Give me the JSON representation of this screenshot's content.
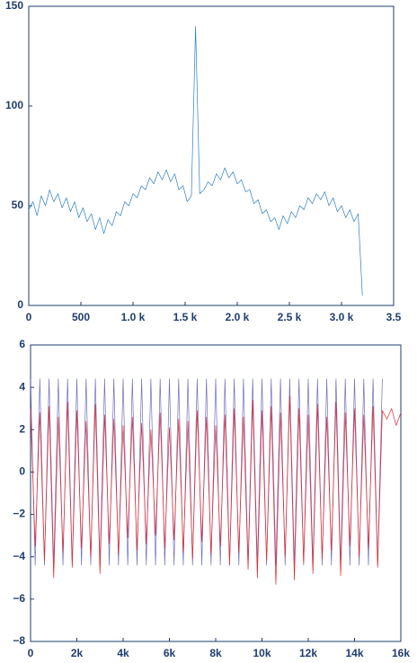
{
  "chart_data": [
    {
      "type": "line",
      "xlim": [
        0,
        3500
      ],
      "ylim": [
        0,
        150
      ],
      "xticks": [
        0,
        500,
        {
          "value": 1000,
          "label": "1.0 k"
        },
        {
          "value": 1500,
          "label": "1.5 k"
        },
        {
          "value": 2000,
          "label": "2.0 k"
        },
        {
          "value": 2500,
          "label": "2.5 k"
        },
        {
          "value": 3000,
          "label": "3.0 k"
        },
        {
          "value": 3500,
          "label": "3.5"
        }
      ],
      "yticks": [
        0,
        50,
        100,
        150
      ],
      "x": [
        0,
        40,
        80,
        120,
        160,
        200,
        240,
        280,
        320,
        360,
        400,
        440,
        480,
        520,
        560,
        600,
        640,
        680,
        720,
        760,
        800,
        840,
        880,
        920,
        960,
        1000,
        1040,
        1080,
        1120,
        1160,
        1200,
        1240,
        1280,
        1320,
        1360,
        1400,
        1440,
        1480,
        1520,
        1560,
        1600,
        1640,
        1680,
        1720,
        1760,
        1800,
        1840,
        1880,
        1920,
        1960,
        2000,
        2040,
        2080,
        2120,
        2160,
        2200,
        2240,
        2280,
        2320,
        2360,
        2400,
        2440,
        2480,
        2520,
        2560,
        2600,
        2640,
        2680,
        2720,
        2760,
        2800,
        2840,
        2880,
        2920,
        2960,
        3000,
        3040,
        3080,
        3120,
        3160,
        3200
      ],
      "series": [
        {
          "color": "#2f7fc1",
          "values": [
            48,
            52,
            45,
            55,
            50,
            58,
            52,
            56,
            49,
            54,
            47,
            52,
            44,
            49,
            42,
            46,
            38,
            44,
            36,
            43,
            40,
            47,
            45,
            52,
            50,
            56,
            54,
            60,
            58,
            64,
            61,
            67,
            63,
            68,
            62,
            66,
            58,
            60,
            52,
            55,
            140,
            56,
            58,
            62,
            60,
            66,
            63,
            69,
            64,
            67,
            61,
            63,
            57,
            58,
            51,
            53,
            46,
            48,
            42,
            44,
            38,
            45,
            41,
            47,
            44,
            50,
            48,
            54,
            51,
            56,
            53,
            57,
            50,
            54,
            47,
            50,
            44,
            48,
            42,
            46,
            5
          ]
        }
      ]
    },
    {
      "type": "line",
      "xlim": [
        0,
        16000
      ],
      "ylim": [
        -8,
        6
      ],
      "xticks": [
        0,
        {
          "value": 2000,
          "label": "2k"
        },
        {
          "value": 4000,
          "label": "4k"
        },
        {
          "value": 6000,
          "label": "6k"
        },
        {
          "value": 8000,
          "label": "8k"
        },
        {
          "value": 10000,
          "label": "10k"
        },
        {
          "value": 12000,
          "label": "12k"
        },
        {
          "value": 14000,
          "label": "14k"
        },
        {
          "value": 16000,
          "label": "16k"
        }
      ],
      "yticks": [
        {
          "value": -8,
          "label": "−8"
        },
        {
          "value": -6,
          "label": "−6"
        },
        {
          "value": -4,
          "label": "−4"
        },
        {
          "value": -2,
          "label": "−2"
        },
        0,
        2,
        4,
        6
      ],
      "x": [
        0,
        200,
        400,
        600,
        800,
        1000,
        1200,
        1400,
        1600,
        1800,
        2000,
        2200,
        2400,
        2600,
        2800,
        3000,
        3200,
        3400,
        3600,
        3800,
        4000,
        4200,
        4400,
        4600,
        4800,
        5000,
        5200,
        5400,
        5600,
        5800,
        6000,
        6200,
        6400,
        6600,
        6800,
        7000,
        7200,
        7400,
        7600,
        7800,
        8000,
        8200,
        8400,
        8600,
        8800,
        9000,
        9200,
        9400,
        9600,
        9800,
        10000,
        10200,
        10400,
        10600,
        10800,
        11000,
        11200,
        11400,
        11600,
        11800,
        12000,
        12200,
        12400,
        12600,
        12800,
        13000,
        13200,
        13400,
        13600,
        13800,
        14000,
        14200,
        14400,
        14600,
        14800,
        15000,
        15200,
        15400,
        15600,
        15800,
        16000
      ],
      "series": [
        {
          "color": "#4b4bb0",
          "values": [
            4.4,
            -4.4,
            4.4,
            -4.4,
            4.4,
            -4.4,
            4.4,
            -4.4,
            4.4,
            -4.4,
            4.4,
            -4.4,
            4.4,
            -4.4,
            4.4,
            -4.4,
            4.4,
            -4.4,
            4.4,
            -4.4,
            4.4,
            -4.4,
            4.4,
            -4.4,
            4.4,
            -4.4,
            4.4,
            -4.4,
            4.4,
            -4.4,
            4.4,
            -4.4,
            4.4,
            -4.4,
            4.4,
            -4.4,
            4.4,
            -4.4,
            4.4,
            -4.4,
            4.4,
            -4.4,
            4.4,
            -4.4,
            4.4,
            -4.4,
            4.4,
            -4.4,
            4.4,
            -4.4,
            4.4,
            -4.4,
            4.4,
            -4.4,
            4.4,
            -4.4,
            4.4,
            -4.4,
            4.4,
            -4.4,
            4.4,
            -4.4,
            4.4,
            -4.4,
            4.4,
            -4.4,
            4.4,
            -4.4,
            4.4,
            -4.4,
            4.4,
            -4.4,
            4.4,
            -4.4,
            4.4,
            -4.4,
            4.4,
            null,
            null,
            null,
            null
          ]
        },
        {
          "color": "#e52a2a",
          "values": [
            3.0,
            -3.5,
            2.8,
            -4.2,
            3.1,
            -5.0,
            2.6,
            -3.8,
            3.3,
            -4.5,
            2.9,
            -3.6,
            2.4,
            -4.0,
            3.2,
            -4.8,
            2.7,
            -3.4,
            2.5,
            -3.9,
            2.2,
            -3.1,
            2.6,
            -3.7,
            2.3,
            -3.4,
            2.0,
            -3.0,
            2.8,
            -3.6,
            2.1,
            -3.2,
            2.5,
            -3.8,
            2.4,
            -4.1,
            2.9,
            -3.3,
            2.6,
            -3.9,
            2.2,
            -3.5,
            2.7,
            -4.4,
            3.0,
            -3.8,
            2.6,
            -4.6,
            3.4,
            -5.0,
            2.9,
            -4.2,
            3.1,
            -5.3,
            2.8,
            -4.0,
            3.6,
            -5.1,
            3.0,
            -4.3,
            2.7,
            -4.8,
            3.2,
            -4.1,
            2.6,
            -3.7,
            3.3,
            -4.9,
            2.8,
            -3.5,
            3.0,
            -4.0,
            2.7,
            -3.6,
            3.1,
            -4.5,
            2.9,
            2.5,
            3.0,
            2.2,
            2.8
          ]
        }
      ]
    }
  ]
}
